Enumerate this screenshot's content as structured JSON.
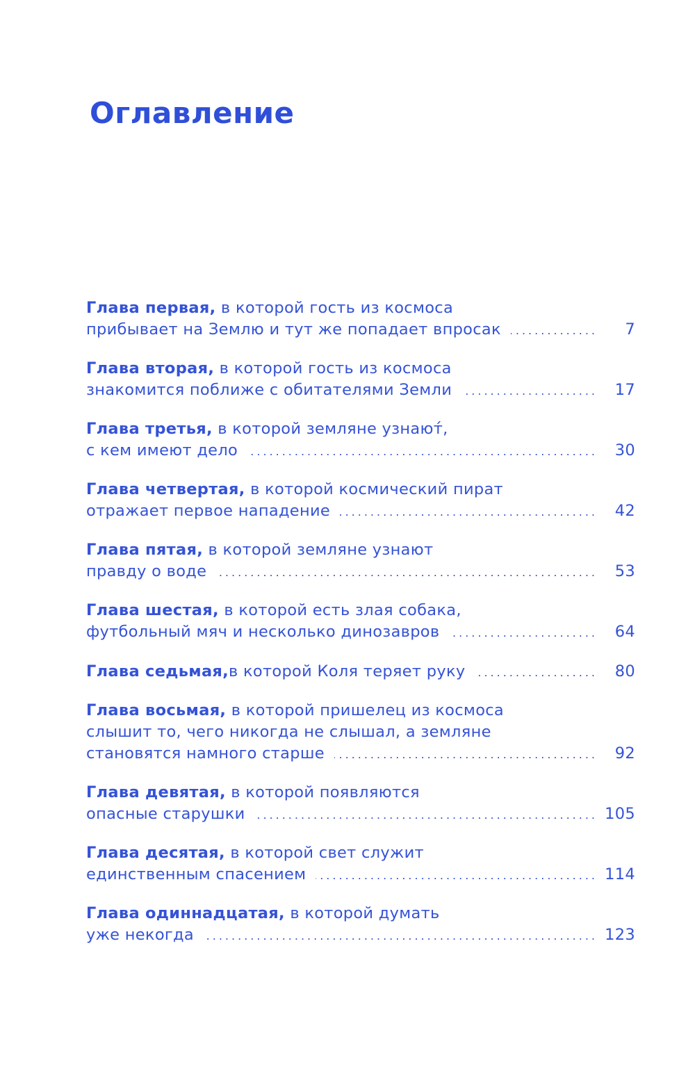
{
  "title": "Оглавление",
  "entries": [
    {
      "bold": "Глава первая,",
      "lines": [
        " в которой гость из космоса",
        "прибывает на Землю и тут же попадает впросак"
      ],
      "page": "7"
    },
    {
      "bold": "Глава вторая,",
      "lines": [
        " в которой гость из космоса",
        "знакомится поближе с обитателями Земли"
      ],
      "page": "17"
    },
    {
      "bold": "Глава третья,",
      "lines": [
        " в которой земляне узнают́,",
        "с кем имеют дело"
      ],
      "page": "30"
    },
    {
      "bold": "Глава четвертая,",
      "lines": [
        " в которой космический пират",
        "отражает первое нападение"
      ],
      "page": "42"
    },
    {
      "bold": "Глава пятая,",
      "lines": [
        " в которой земляне узнают",
        "правду о воде"
      ],
      "page": "53"
    },
    {
      "bold": "Глава шестая,",
      "lines": [
        " в которой есть злая собака,",
        "футбольный мяч и несколько динозавров"
      ],
      "page": "64"
    },
    {
      "bold": "Глава седьмая,",
      "lines": [
        " в которой Коля теряет руку"
      ],
      "page": "80"
    },
    {
      "bold": "Глава восьмая,",
      "lines": [
        " в которой пришелец из космоса",
        "слышит то, чего никогда не слышал, а земляне",
        "становятся намного старше"
      ],
      "page": "92"
    },
    {
      "bold": "Глава девятая,",
      "lines": [
        " в которой появляются",
        "опасные старушки"
      ],
      "page": "105"
    },
    {
      "bold": "Глава десятая,",
      "lines": [
        " в которой свет служит",
        "единственным спасением"
      ],
      "page": "114"
    },
    {
      "bold": "Глава одиннадцатая,",
      "lines": [
        " в которой думать",
        "уже некогда"
      ],
      "page": "123"
    }
  ]
}
